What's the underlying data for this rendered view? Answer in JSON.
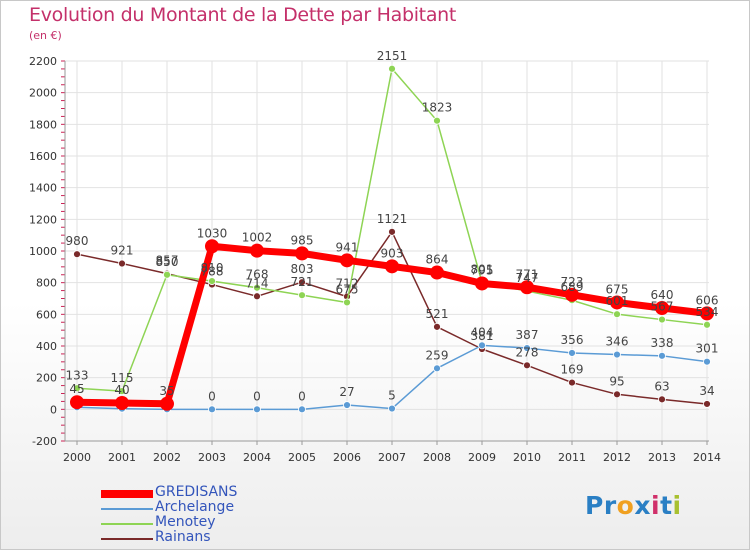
{
  "title": "Evolution du Montant de la Dette par Habitant",
  "unit_label": "(en €)",
  "logo": {
    "text": "Proxiti",
    "letters": [
      {
        "ch": "P",
        "color": "#2a7fc4"
      },
      {
        "ch": "r",
        "color": "#2a7fc4"
      },
      {
        "ch": "o",
        "color": "#f0a020"
      },
      {
        "ch": "x",
        "color": "#2a7fc4"
      },
      {
        "ch": "i",
        "color": "#d0306a"
      },
      {
        "ch": "t",
        "color": "#2a7fc4"
      },
      {
        "ch": "i",
        "color": "#a8c030"
      }
    ]
  },
  "chart_data": {
    "type": "line",
    "x": [
      "2000",
      "2001",
      "2002",
      "2003",
      "2004",
      "2005",
      "2006",
      "2007",
      "2008",
      "2009",
      "2010",
      "2011",
      "2012",
      "2013",
      "2014"
    ],
    "ylim": [
      -200,
      2200
    ],
    "yticks": [
      "-200",
      "0",
      "200",
      "400",
      "600",
      "800",
      "1000",
      "1200",
      "1400",
      "1600",
      "1800",
      "2000",
      "2200"
    ],
    "grid": true,
    "legend_position": "bottom-left",
    "series": [
      {
        "name": "GREDISANS",
        "color": "#ff0000",
        "values": [
          45,
          40,
          35,
          1030,
          1002,
          985,
          941,
          903,
          864,
          795,
          771,
          723,
          675,
          640,
          606
        ],
        "labels": [
          "45",
          "40",
          "35",
          "1030",
          "1002",
          "985",
          "941",
          "903",
          "864",
          "795",
          "771",
          "723",
          "675",
          "640",
          "606"
        ]
      },
      {
        "name": "Archelange",
        "color": "#5b9bd5",
        "values": [
          13,
          4,
          0,
          0,
          0,
          0,
          27,
          5,
          259,
          404,
          387,
          356,
          346,
          338,
          301
        ],
        "labels": [
          "",
          "",
          "",
          "0",
          "0",
          "0",
          "27",
          "5",
          "259",
          "404",
          "387",
          "356",
          "346",
          "338",
          "301"
        ]
      },
      {
        "name": "Menotey",
        "color": "#8ed454",
        "values": [
          133,
          115,
          850,
          810,
          768,
          721,
          675,
          2151,
          1823,
          801,
          747,
          689,
          601,
          567,
          534
        ],
        "labels": [
          "133",
          "115",
          "850",
          "810",
          "768",
          "721",
          "675",
          "2151",
          "1823",
          "801",
          "747",
          "689",
          "601",
          "567",
          "534"
        ]
      },
      {
        "name": "Rainans",
        "color": "#7a2a2a",
        "values": [
          980,
          921,
          857,
          788,
          714,
          803,
          712,
          1121,
          521,
          381,
          278,
          169,
          95,
          63,
          34
        ],
        "labels": [
          "980",
          "921",
          "857",
          "788",
          "714",
          "803",
          "712",
          "1121",
          "521",
          "381",
          "278",
          "169",
          "95",
          "63",
          "34"
        ]
      }
    ]
  }
}
